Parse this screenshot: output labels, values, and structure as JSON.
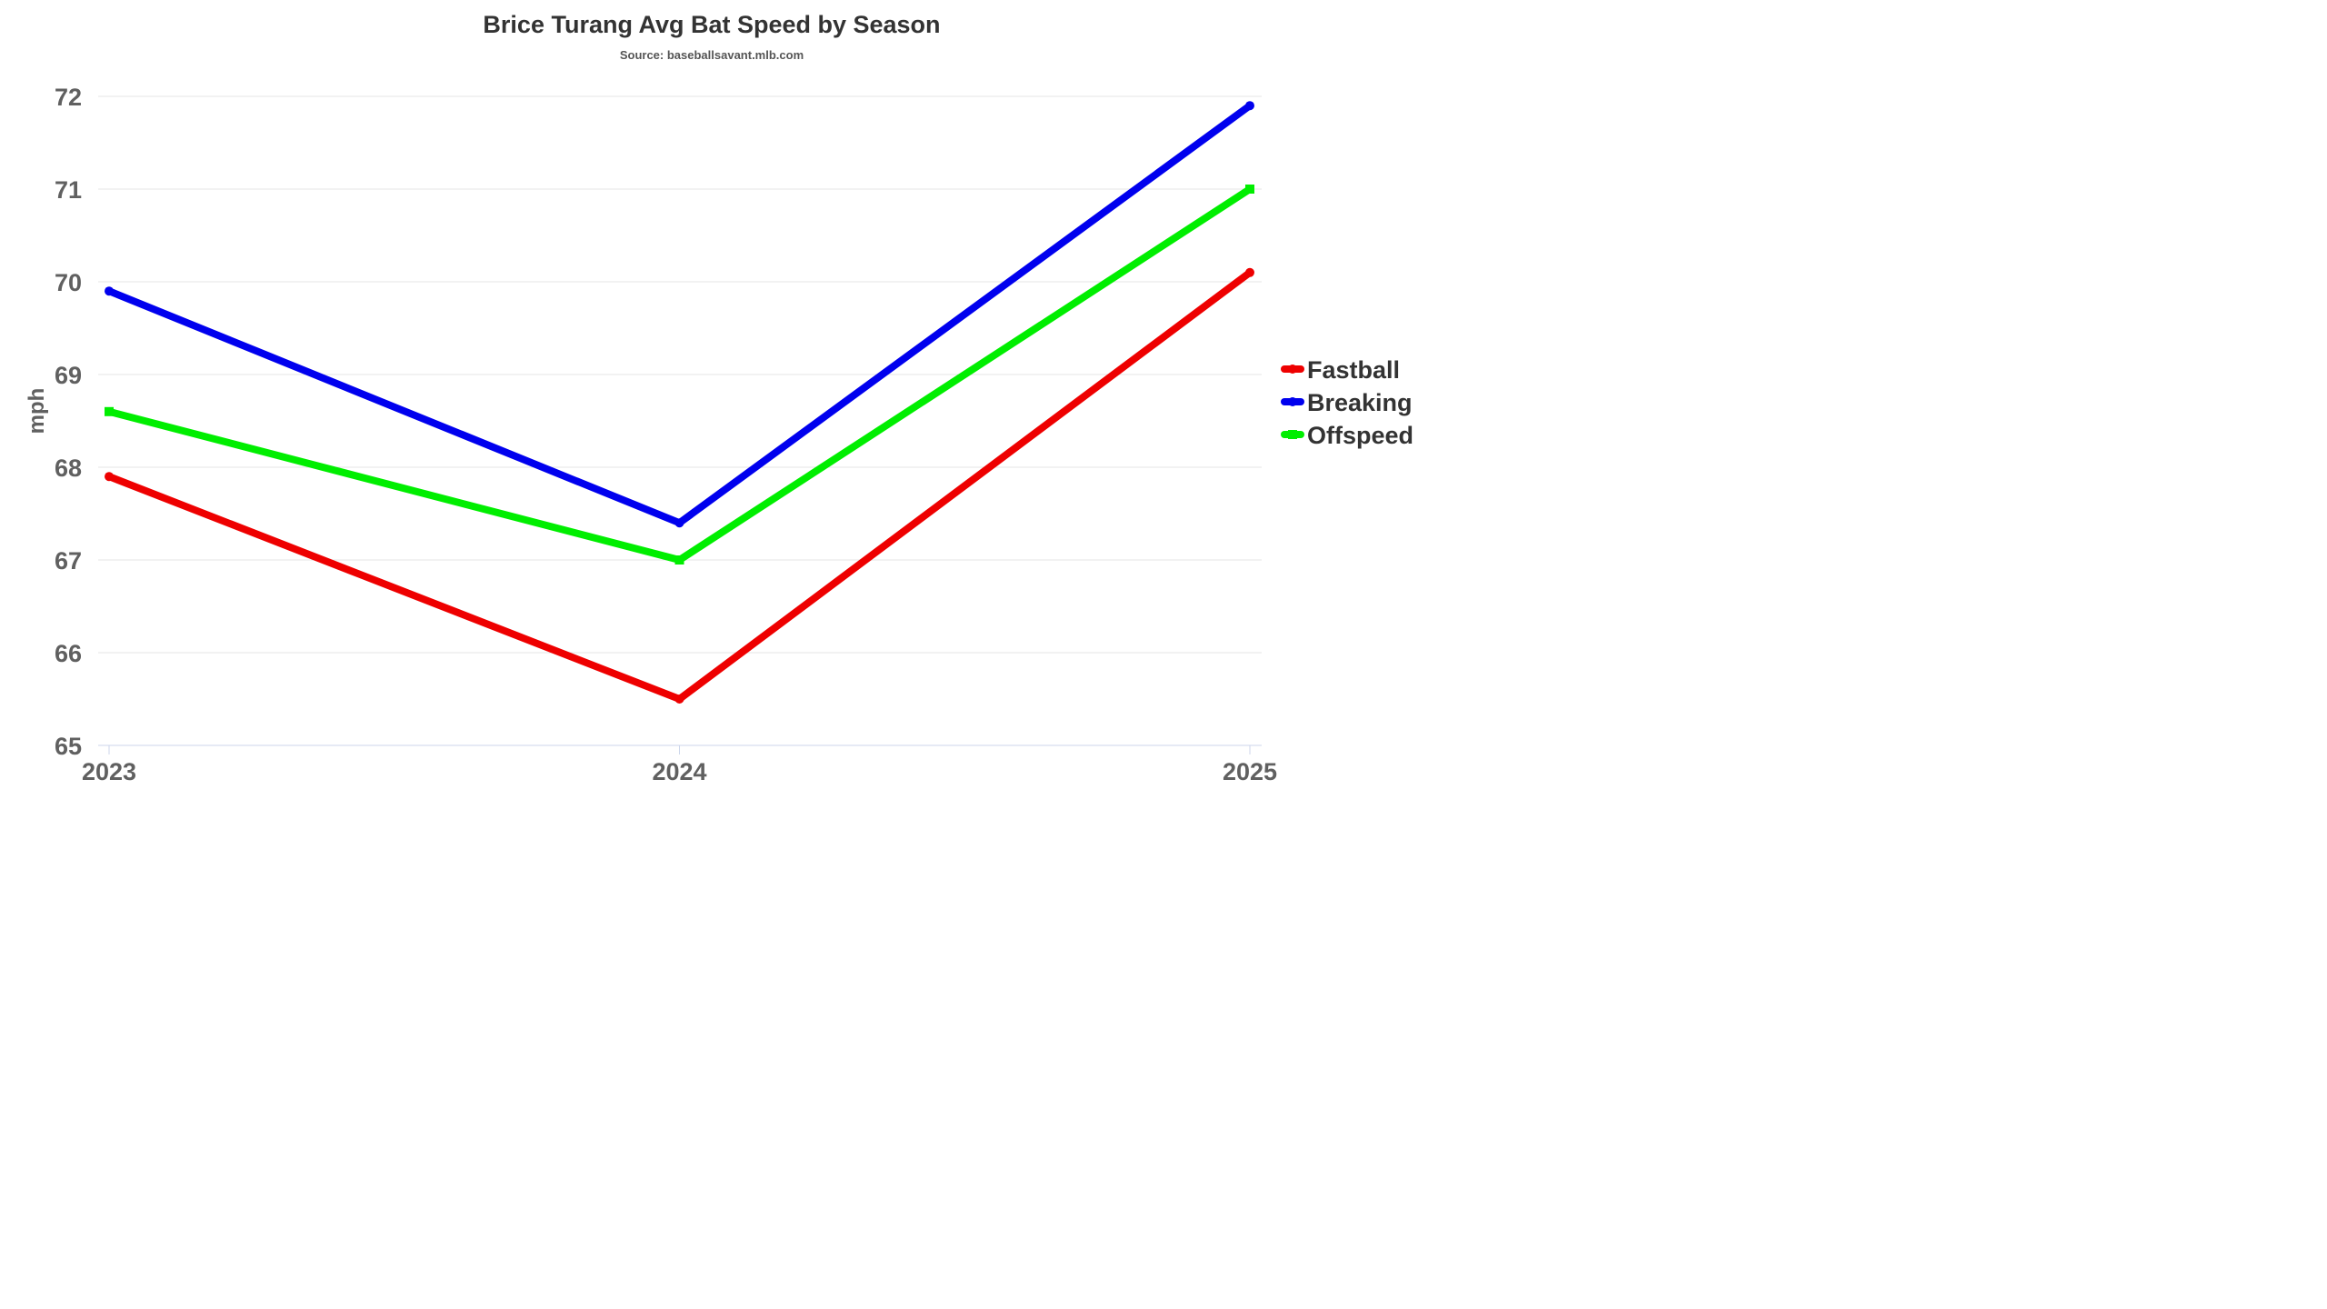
{
  "chart_data": {
    "type": "line",
    "title": "Brice Turang Avg Bat Speed by Season",
    "subtitle": "Source: baseballsavant.mlb.com",
    "xlabel": "",
    "ylabel": "mph",
    "categories": [
      "2023",
      "2024",
      "2025"
    ],
    "ylim": [
      65,
      72
    ],
    "yticks": [
      65,
      66,
      67,
      68,
      69,
      70,
      71,
      72
    ],
    "grid": true,
    "legend_position": "right",
    "series": [
      {
        "name": "Fastball",
        "color": "#ee0000",
        "marker": "circle",
        "values": [
          67.9,
          65.5,
          70.1
        ]
      },
      {
        "name": "Breaking",
        "color": "#0000ee",
        "marker": "circle",
        "values": [
          69.9,
          67.4,
          71.9
        ]
      },
      {
        "name": "Offspeed",
        "color": "#00ee00",
        "marker": "square",
        "values": [
          68.6,
          67.0,
          71.0
        ]
      }
    ]
  }
}
